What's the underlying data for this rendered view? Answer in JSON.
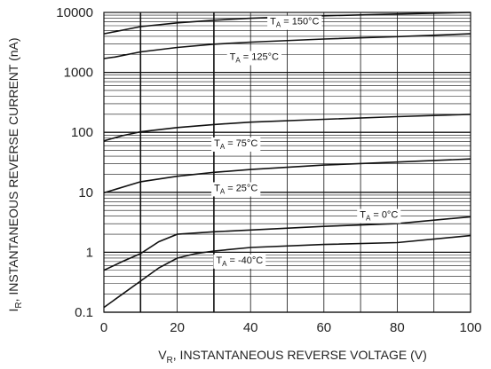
{
  "chart_data": {
    "type": "line",
    "title": "",
    "xlabel": "V",
    "xlabel_sub": "R",
    "xlabel_rest": ", INSTANTANEOUS REVERSE VOLTAGE (V)",
    "ylabel": "I",
    "ylabel_sub": "R",
    "ylabel_rest": ", INSTANTANEOUS REVERSE CURRENT (nA)",
    "xlim": [
      0,
      100
    ],
    "ylim": [
      0.1,
      10000
    ],
    "yscale": "log",
    "grid": true,
    "x_ticks": [
      0,
      20,
      40,
      60,
      80,
      100
    ],
    "x_tick_labels": [
      "0",
      "20",
      "40",
      "60",
      "80",
      "100"
    ],
    "y_ticks": [
      0.1,
      1,
      10,
      100,
      1000,
      10000
    ],
    "y_tick_labels": [
      "0.1",
      "1",
      "10",
      "100",
      "1000",
      "10000"
    ],
    "series": [
      {
        "name": "TA = 150°C",
        "label_main": "T",
        "label_sub": "A",
        "label_rest": " = 150°C",
        "label_at": [
          52,
          7200
        ],
        "x": [
          0,
          10,
          20,
          30,
          40,
          60,
          80,
          100
        ],
        "y": [
          4400,
          5800,
          6700,
          7400,
          8000,
          8800,
          9400,
          10000
        ]
      },
      {
        "name": "TA = 125°C",
        "label_main": "T",
        "label_sub": "A",
        "label_rest": " = 125°C",
        "label_at": [
          41,
          1850
        ],
        "x": [
          0,
          3,
          10,
          20,
          30,
          40,
          60,
          80,
          100
        ],
        "y": [
          1700,
          1800,
          2200,
          2600,
          2950,
          3200,
          3600,
          3950,
          4400
        ]
      },
      {
        "name": "TA = 75°C",
        "label_main": "T",
        "label_sub": "A",
        "label_rest": " = 75°C",
        "label_at": [
          36,
          67
        ],
        "x": [
          0,
          5,
          10,
          20,
          30,
          40,
          60,
          80,
          100
        ],
        "y": [
          72,
          88,
          102,
          120,
          135,
          148,
          165,
          183,
          200
        ]
      },
      {
        "name": "TA = 25°C",
        "label_main": "T",
        "label_sub": "A",
        "label_rest": " = 25°C",
        "label_at": [
          36,
          12
        ],
        "x": [
          0,
          10,
          20,
          30,
          40,
          60,
          80,
          100
        ],
        "y": [
          9.8,
          15,
          18.5,
          21.5,
          24,
          28.5,
          32,
          36
        ]
      },
      {
        "name": "TA = 0°C",
        "label_main": "T",
        "label_sub": "A",
        "label_rest": " = 0°C",
        "label_at": [
          75,
          4.3
        ],
        "x": [
          0,
          5,
          10,
          15,
          20,
          30,
          40,
          60,
          80,
          100
        ],
        "y": [
          0.5,
          0.7,
          0.95,
          1.5,
          2.0,
          2.2,
          2.35,
          2.7,
          3.0,
          3.9
        ]
      },
      {
        "name": "TA = -40°C",
        "label_main": "T",
        "label_sub": "A",
        "label_rest": " = -40°C",
        "label_at": [
          37,
          0.75
        ],
        "x": [
          0,
          5,
          10,
          15,
          20,
          25,
          30,
          40,
          60,
          80,
          100
        ],
        "y": [
          0.12,
          0.2,
          0.33,
          0.55,
          0.8,
          0.95,
          1.05,
          1.2,
          1.35,
          1.45,
          1.9
        ]
      }
    ]
  }
}
